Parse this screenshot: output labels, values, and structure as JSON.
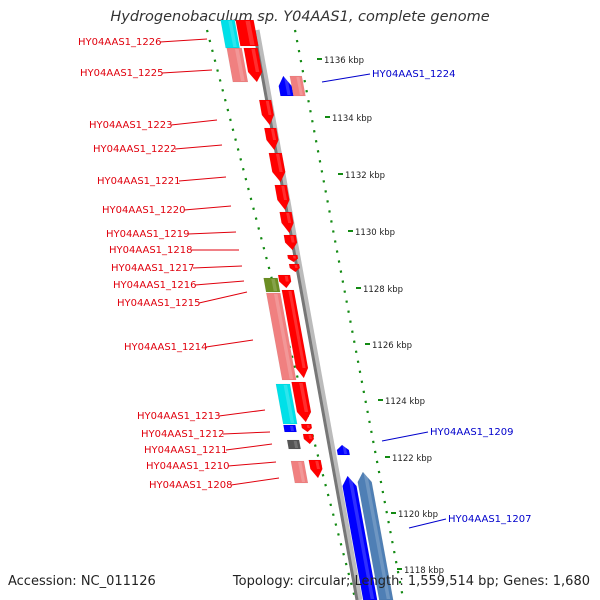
{
  "title": "Hydrogenobaculum sp. Y04AAS1, complete genome",
  "footer": {
    "accession": "Accession: NC_011126",
    "topology": "Topology: circular; Length: 1,559,514 bp; Genes: 1,680"
  },
  "colors": {
    "forward_cds": "#ff0000",
    "forward_cds_light": "#f08080",
    "reverse_cds": "#0000ff",
    "reverse_cds_steel": "#4f7fb5",
    "rna_cyan": "#00e0e8",
    "olive": "#6b8e23",
    "backbone": "#888888",
    "gc_dots": "#138a13",
    "label_red": "#e0000d",
    "label_blue": "#0000cc"
  },
  "ticks": [
    {
      "label": "1136 kbp"
    },
    {
      "label": "1134 kbp"
    },
    {
      "label": "1132 kbp"
    },
    {
      "label": "1130 kbp"
    },
    {
      "label": "1128 kbp"
    },
    {
      "label": "1126 kbp"
    },
    {
      "label": "1124 kbp"
    },
    {
      "label": "1122 kbp"
    },
    {
      "label": "1120 kbp"
    },
    {
      "label": "1118 kbp"
    }
  ],
  "gene_labels_forward": [
    {
      "label": "HY04AAS1_1226"
    },
    {
      "label": "HY04AAS1_1225"
    },
    {
      "label": "HY04AAS1_1223"
    },
    {
      "label": "HY04AAS1_1222"
    },
    {
      "label": "HY04AAS1_1221"
    },
    {
      "label": "HY04AAS1_1220"
    },
    {
      "label": "HY04AAS1_1219"
    },
    {
      "label": "HY04AAS1_1218"
    },
    {
      "label": "HY04AAS1_1217"
    },
    {
      "label": "HY04AAS1_1216"
    },
    {
      "label": "HY04AAS1_1215"
    },
    {
      "label": "HY04AAS1_1214"
    },
    {
      "label": "HY04AAS1_1213"
    },
    {
      "label": "HY04AAS1_1212"
    },
    {
      "label": "HY04AAS1_1211"
    },
    {
      "label": "HY04AAS1_1210"
    },
    {
      "label": "HY04AAS1_1208"
    }
  ],
  "gene_labels_reverse": [
    {
      "label": "HY04AAS1_1224"
    },
    {
      "label": "HY04AAS1_1209"
    },
    {
      "label": "HY04AAS1_1207"
    }
  ]
}
